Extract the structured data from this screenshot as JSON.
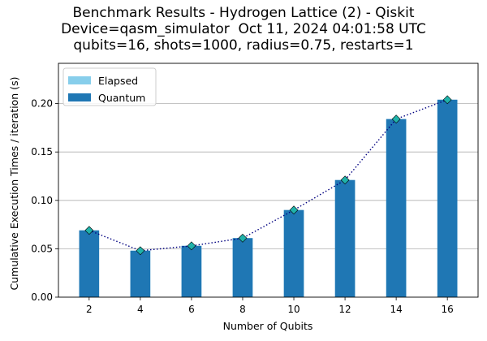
{
  "chart_data": {
    "type": "bar",
    "title_lines": [
      "Benchmark Results - Hydrogen Lattice (2) - Qiskit",
      "Device=qasm_simulator  Oct 11, 2024 04:01:58 UTC",
      "qubits=16, shots=1000, radius=0.75, restarts=1"
    ],
    "xlabel": "Number of Qubits",
    "ylabel": "Cumulative Execution Times / iteration (s)",
    "categories": [
      2,
      4,
      6,
      8,
      10,
      12,
      14,
      16
    ],
    "x_tick_labels": [
      "2",
      "4",
      "6",
      "8",
      "10",
      "12",
      "14",
      "16"
    ],
    "y_ticks": [
      0.0,
      0.05,
      0.1,
      0.15,
      0.2
    ],
    "y_tick_labels": [
      "0.00",
      "0.05",
      "0.10",
      "0.15",
      "0.20"
    ],
    "xlim": [
      0.8,
      17.2
    ],
    "ylim": [
      0,
      0.2
    ],
    "grid": "horizontal",
    "legend_position": "upper-left",
    "series": [
      {
        "name": "Elapsed",
        "color": "#87ceeb",
        "values": [
          0.069,
          0.048,
          0.053,
          0.061,
          0.09,
          0.121,
          0.184,
          0.204
        ]
      },
      {
        "name": "Quantum",
        "color": "#1f77b4",
        "values": [
          0.069,
          0.048,
          0.053,
          0.061,
          0.09,
          0.121,
          0.184,
          0.204
        ]
      }
    ],
    "trend_line": {
      "values": [
        0.069,
        0.048,
        0.053,
        0.061,
        0.09,
        0.121,
        0.184,
        0.204
      ],
      "line_color": "#000080",
      "marker_color": "#20b2aa",
      "marker": "diamond"
    }
  }
}
